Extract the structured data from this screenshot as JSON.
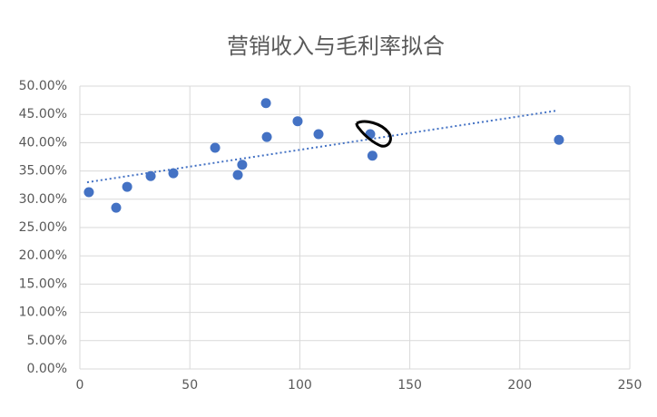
{
  "chart_data": {
    "type": "scatter",
    "title": "营销收入与毛利率拟合",
    "series": [
      {
        "color": "#4472c4",
        "x": [
          4.1,
          16.5,
          21.5,
          32.2,
          42.5,
          61.5,
          71.8,
          73.8,
          84.6,
          85.0,
          99.0,
          108.5,
          132.0,
          133.0,
          217.8
        ],
        "values": [
          31.25,
          28.5,
          32.2,
          34.1,
          34.6,
          39.1,
          34.3,
          36.1,
          47.0,
          41.0,
          43.8,
          41.5,
          41.5,
          37.7,
          40.5
        ]
      }
    ],
    "trendline": {
      "x": [
        3.3,
        217.4
      ],
      "values": [
        33.0,
        45.7
      ],
      "color": "#4472c4"
    },
    "xlim": [
      0,
      250
    ],
    "xticks": [
      0,
      50,
      100,
      150,
      200,
      250
    ],
    "ylim": [
      0,
      50
    ],
    "yticks": [
      {
        "value": 0,
        "label": "0.00%"
      },
      {
        "value": 5,
        "label": "5.00%"
      },
      {
        "value": 10,
        "label": "10.00%"
      },
      {
        "value": 15,
        "label": "15.00%"
      },
      {
        "value": 20,
        "label": "20.00%"
      },
      {
        "value": 25,
        "label": "25.00%"
      },
      {
        "value": 30,
        "label": "30.00%"
      },
      {
        "value": 35,
        "label": "35.00%"
      },
      {
        "value": 40,
        "label": "40.00%"
      },
      {
        "value": 45,
        "label": "45.00%"
      },
      {
        "value": 50,
        "label": "50.00%"
      }
    ],
    "grid": true
  }
}
